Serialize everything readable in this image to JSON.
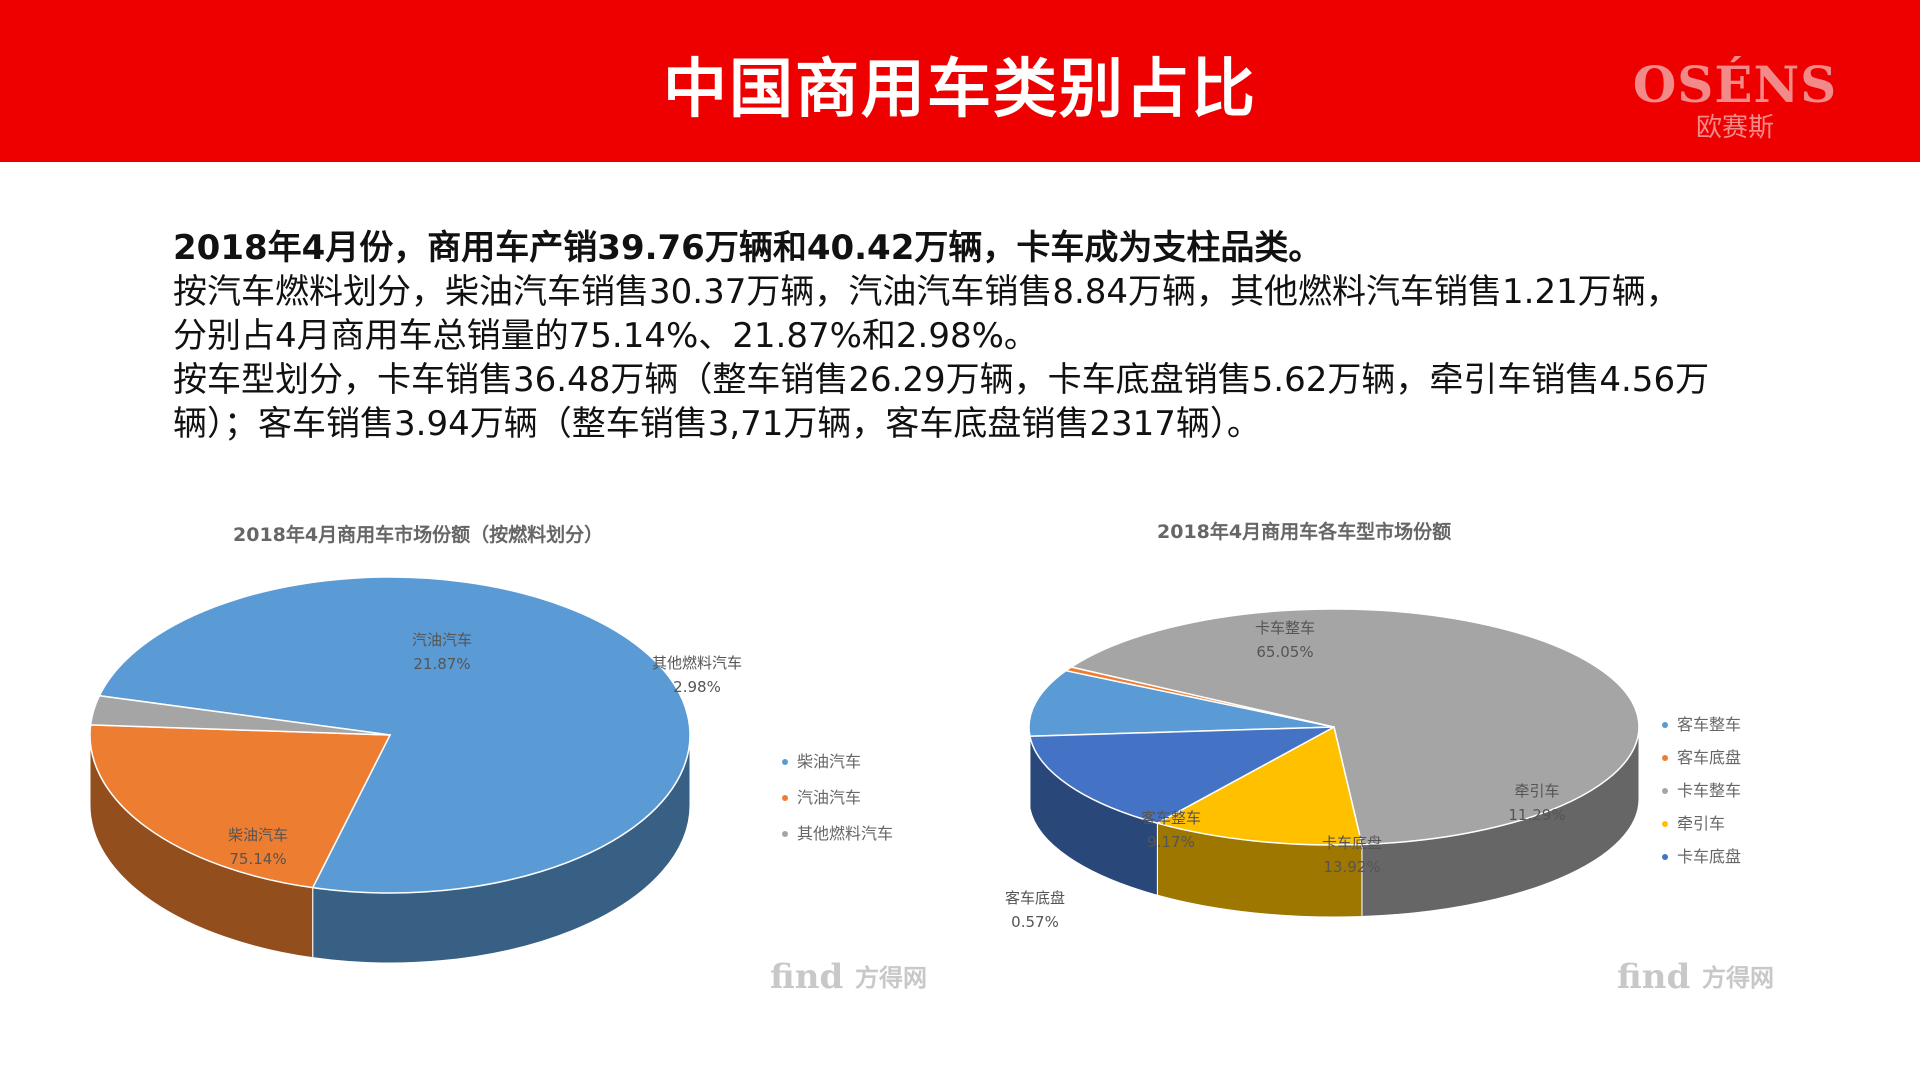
{
  "header": {
    "title": "中国商用车类别占比",
    "logo_en": "OSÉNS",
    "logo_cn": "欧赛斯"
  },
  "summary": {
    "lead": "2018年4月份，商用车产销39.76万辆和40.42万辆，卡车成为支柱品类。",
    "line1": "按汽车燃料划分，柴油汽车销售30.37万辆，汽油汽车销售8.84万辆，其他燃料汽车销售1.21万辆，",
    "line2": "分别占4月商用车总销量的75.14%、21.87%和2.98%。",
    "line3": "按车型划分，卡车销售36.48万辆（整车销售26.29万辆，卡车底盘销售5.62万辆，牵引车销售4.56万辆）；客车销售3.94万辆（整车销售3,71万辆，客车底盘销售2317辆）。"
  },
  "chart_data": [
    {
      "type": "pie",
      "title": "2018年4月商用车市场份额（按燃料划分）",
      "slices": [
        {
          "name": "柴油汽车",
          "value": 75.14,
          "label": "75.14%",
          "color": "#5b9bd5"
        },
        {
          "name": "汽油汽车",
          "value": 21.87,
          "label": "21.87%",
          "color": "#ed7d31"
        },
        {
          "name": "其他燃料汽车",
          "value": 2.98,
          "label": "2.98%",
          "color": "#a5a5a5"
        }
      ],
      "legend": [
        "柴油汽车",
        "汽油汽车",
        "其他燃料汽车"
      ],
      "legend_position": "right",
      "style": "3d"
    },
    {
      "type": "pie",
      "title": "2018年4月商用车各车型市场份额",
      "slices": [
        {
          "name": "客车整车",
          "value": 9.17,
          "label": "9.17%",
          "color": "#5b9bd5"
        },
        {
          "name": "客车底盘",
          "value": 0.57,
          "label": "0.57%",
          "color": "#ed7d31"
        },
        {
          "name": "卡车整车",
          "value": 65.05,
          "label": "65.05%",
          "color": "#a5a5a5"
        },
        {
          "name": "牵引车",
          "value": 11.29,
          "label": "11.29%",
          "color": "#ffc000"
        },
        {
          "name": "卡车底盘",
          "value": 13.92,
          "label": "13.92%",
          "color": "#4472c4"
        }
      ],
      "legend": [
        "客车整车",
        "客车底盘",
        "卡车整车",
        "牵引车",
        "卡车底盘"
      ],
      "legend_position": "right",
      "style": "3d"
    }
  ],
  "watermark": {
    "brand": "find",
    "cn": "方得网"
  }
}
